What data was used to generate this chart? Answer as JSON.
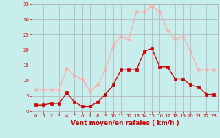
{
  "x": [
    0,
    1,
    2,
    3,
    4,
    5,
    6,
    7,
    8,
    9,
    10,
    11,
    12,
    13,
    14,
    15,
    16,
    17,
    18,
    19,
    20,
    21,
    22,
    23
  ],
  "wind_mean": [
    2,
    2,
    2.5,
    2.5,
    6,
    3,
    1.5,
    1.5,
    3,
    5.5,
    8.5,
    13.5,
    13.5,
    13.5,
    19.5,
    20.5,
    14.5,
    14.5,
    10.5,
    10.5,
    8.5,
    8,
    5.5,
    5.5
  ],
  "wind_gust": [
    7,
    7,
    7,
    7,
    14,
    11.5,
    10.5,
    6.5,
    8.5,
    13.5,
    21.5,
    24.5,
    23.5,
    32.5,
    32.5,
    34.5,
    32.5,
    26.5,
    23.5,
    24.5,
    19.5,
    13.5,
    13.5,
    13.5
  ],
  "color_mean": "#cc0000",
  "color_gust": "#ffaaaa",
  "bg_color": "#c8eded",
  "grid_color": "#b0b0b0",
  "xlabel": "Vent moyen/en rafales ( km/h )",
  "ylim": [
    0,
    35
  ],
  "xlim_min": -0.5,
  "xlim_max": 23.5,
  "yticks": [
    0,
    5,
    10,
    15,
    20,
    25,
    30,
    35
  ],
  "xticks": [
    0,
    1,
    2,
    3,
    4,
    5,
    6,
    7,
    8,
    9,
    10,
    11,
    12,
    13,
    14,
    15,
    16,
    17,
    18,
    19,
    20,
    21,
    22,
    23
  ],
  "tick_color": "#cc0000",
  "label_color": "#cc0000",
  "tick_fontsize": 5.0,
  "xlabel_fontsize": 6.5
}
